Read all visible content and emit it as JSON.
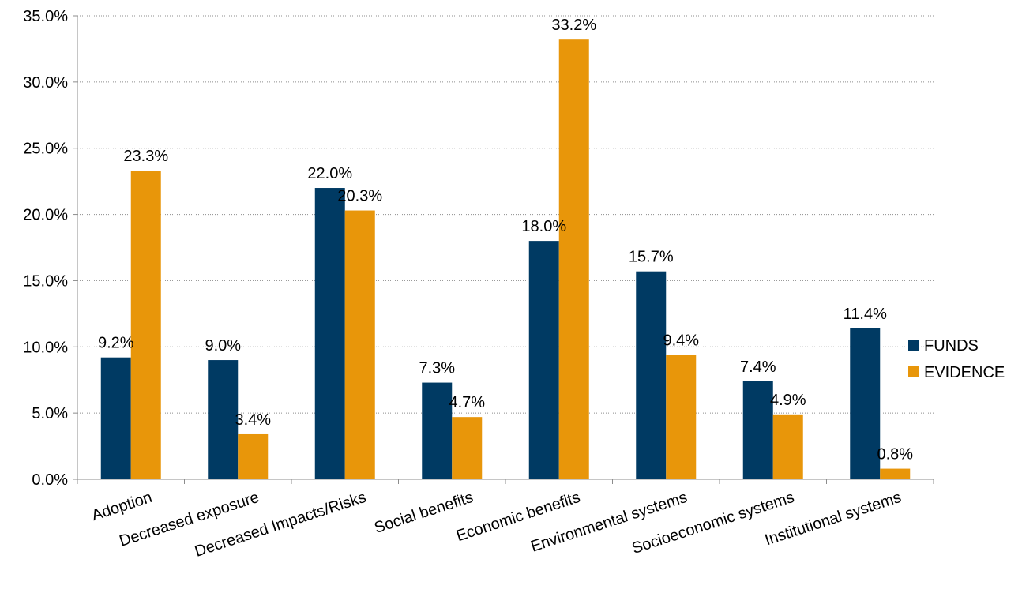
{
  "chart_data": {
    "type": "bar",
    "title": "",
    "xlabel": "",
    "ylabel": "",
    "categories": [
      "Adoption",
      "Decreased exposure",
      "Decreased Impacts/Risks",
      "Social benefits",
      "Economic benefits",
      "Environmental systems",
      "Socioeconomic systems",
      "Institutional systems"
    ],
    "series": [
      {
        "name": "FUNDS",
        "color": "#003A63",
        "values": [
          9.2,
          9.0,
          22.0,
          7.3,
          18.0,
          15.7,
          7.4,
          11.4
        ],
        "labels": [
          "9.2%",
          "9.0%",
          "22.0%",
          "7.3%",
          "18.0%",
          "15.7%",
          "7.4%",
          "11.4%"
        ]
      },
      {
        "name": "EVIDENCE",
        "color": "#E8960A",
        "values": [
          23.3,
          3.4,
          20.3,
          4.7,
          33.2,
          9.4,
          4.9,
          0.8
        ],
        "labels": [
          "23.3%",
          "3.4%",
          "20.3%",
          "4.7%",
          "33.2%",
          "9.4%",
          "4.9%",
          "0.8%"
        ]
      }
    ],
    "ylim": [
      0,
      35
    ],
    "yticks": [
      0,
      5,
      10,
      15,
      20,
      25,
      30,
      35
    ],
    "ytick_labels": [
      "0.0%",
      "5.0%",
      "10.0%",
      "15.0%",
      "20.0%",
      "25.0%",
      "30.0%",
      "35.0%"
    ],
    "grid": "horizontal dotted",
    "legend_position": "right"
  }
}
